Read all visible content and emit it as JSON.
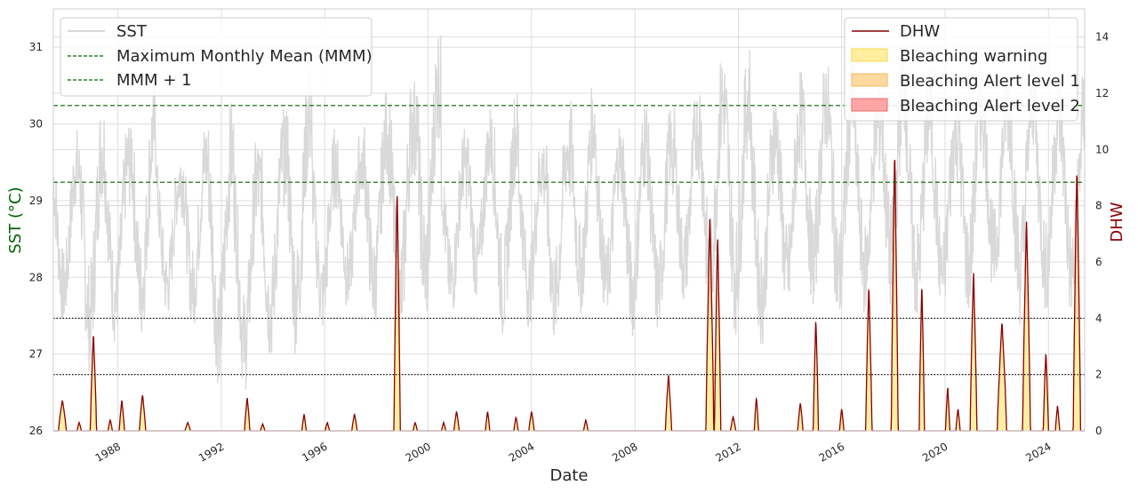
{
  "chart_data": {
    "type": "line",
    "xlabel": "Date",
    "ylabel_left": "SST (°C)",
    "ylabel_right": "DHW",
    "x_range": [
      1985.5,
      2025.4
    ],
    "ylim_left": [
      26,
      31.5
    ],
    "ylim_right": [
      0,
      15
    ],
    "xticks": [
      "1988",
      "1992",
      "1996",
      "2000",
      "2004",
      "2008",
      "2012",
      "2016",
      "2020",
      "2024"
    ],
    "yticks_left": [
      "26",
      "27",
      "28",
      "29",
      "30",
      "31"
    ],
    "yticks_right": [
      "0",
      "2",
      "4",
      "6",
      "8",
      "10",
      "12",
      "14"
    ],
    "grid": true,
    "reference_lines": [
      {
        "name": "Maximum Monthly Mean (MMM)",
        "axis": "left",
        "value": 29.24,
        "style": "dashed",
        "color": "#006400"
      },
      {
        "name": "MMM + 1",
        "axis": "left",
        "value": 30.24,
        "style": "dashed",
        "color": "#006400"
      },
      {
        "axis": "right",
        "value": 4,
        "style": "dotted",
        "color": "#000000"
      },
      {
        "axis": "right",
        "value": 2,
        "style": "dotted",
        "color": "#000000"
      }
    ],
    "sst_series": {
      "name": "SST",
      "color": "#d9d9d9",
      "seasonal_min": [
        27.5,
        27.0,
        27.3,
        27.4,
        27.6,
        27.5,
        26.8,
        26.7,
        27.1,
        27.2,
        27.4,
        27.7,
        27.5,
        27.2,
        27.6,
        27.6,
        27.8,
        27.4,
        27.5,
        27.3,
        27.7,
        27.6,
        27.4,
        27.4,
        27.8,
        27.6,
        27.5,
        27.3,
        27.6,
        27.8,
        27.5,
        27.7,
        27.8,
        27.6,
        27.6,
        27.7,
        27.9,
        27.6,
        27.7,
        27.6,
        27.8,
        27.9,
        27.7,
        27.7,
        27.6,
        27.8,
        27.6,
        27.7,
        27.8,
        27.6
      ],
      "seasonal_max": [
        29.8,
        30.2,
        29.9,
        30.4,
        29.6,
        29.9,
        30.1,
        29.7,
        30.0,
        30.6,
        29.8,
        29.8,
        30.3,
        30.5,
        31.1,
        29.8,
        30.1,
        30.3,
        29.8,
        30.1,
        30.4,
        29.9,
        30.2,
        30.1,
        30.3,
        30.8,
        30.9,
        30.3,
        30.5,
        30.7,
        30.8,
        30.4,
        31.0,
        30.6,
        30.3,
        30.7,
        30.6,
        30.9,
        30.5,
        30.6,
        30.8,
        30.7,
        30.9,
        30.6,
        30.8,
        30.6,
        30.9,
        30.7,
        31.0,
        30.8
      ]
    },
    "dhw_series": {
      "name": "DHW",
      "color": "#8b0000",
      "events": [
        {
          "t": 1985.85,
          "peak": 1.1,
          "width": 0.15
        },
        {
          "t": 1986.5,
          "peak": 0.3,
          "width": 0.08
        },
        {
          "t": 1987.05,
          "peak": 3.5,
          "width": 0.12
        },
        {
          "t": 1987.7,
          "peak": 0.4,
          "width": 0.08
        },
        {
          "t": 1988.15,
          "peak": 1.1,
          "width": 0.1
        },
        {
          "t": 1988.95,
          "peak": 1.3,
          "width": 0.12
        },
        {
          "t": 1990.7,
          "peak": 0.3,
          "width": 0.1
        },
        {
          "t": 1993.0,
          "peak": 1.2,
          "width": 0.1
        },
        {
          "t": 1993.6,
          "peak": 0.25,
          "width": 0.08
        },
        {
          "t": 1995.2,
          "peak": 0.6,
          "width": 0.08
        },
        {
          "t": 1996.1,
          "peak": 0.3,
          "width": 0.08
        },
        {
          "t": 1997.15,
          "peak": 0.6,
          "width": 0.1
        },
        {
          "t": 1998.8,
          "peak": 8.6,
          "width": 0.12
        },
        {
          "t": 1999.5,
          "peak": 0.3,
          "width": 0.08
        },
        {
          "t": 2000.6,
          "peak": 0.3,
          "width": 0.08
        },
        {
          "t": 2001.1,
          "peak": 0.7,
          "width": 0.1
        },
        {
          "t": 2002.3,
          "peak": 0.7,
          "width": 0.08
        },
        {
          "t": 2003.4,
          "peak": 0.5,
          "width": 0.08
        },
        {
          "t": 2004.0,
          "peak": 0.7,
          "width": 0.1
        },
        {
          "t": 2006.1,
          "peak": 0.4,
          "width": 0.08
        },
        {
          "t": 2009.3,
          "peak": 2.0,
          "width": 0.12
        },
        {
          "t": 2010.9,
          "peak": 7.6,
          "width": 0.15
        },
        {
          "t": 2011.2,
          "peak": 7.0,
          "width": 0.12
        },
        {
          "t": 2011.8,
          "peak": 0.5,
          "width": 0.1
        },
        {
          "t": 2012.7,
          "peak": 1.2,
          "width": 0.08
        },
        {
          "t": 2014.4,
          "peak": 1.0,
          "width": 0.1
        },
        {
          "t": 2015.0,
          "peak": 4.0,
          "width": 0.1
        },
        {
          "t": 2016.0,
          "peak": 0.8,
          "width": 0.08
        },
        {
          "t": 2017.05,
          "peak": 5.2,
          "width": 0.12
        },
        {
          "t": 2018.05,
          "peak": 10.0,
          "width": 0.13
        },
        {
          "t": 2019.1,
          "peak": 5.3,
          "width": 0.1
        },
        {
          "t": 2020.1,
          "peak": 1.6,
          "width": 0.08
        },
        {
          "t": 2020.5,
          "peak": 0.8,
          "width": 0.08
        },
        {
          "t": 2021.1,
          "peak": 5.7,
          "width": 0.13
        },
        {
          "t": 2022.2,
          "peak": 3.9,
          "width": 0.18
        },
        {
          "t": 2023.15,
          "peak": 7.5,
          "width": 0.15
        },
        {
          "t": 2023.9,
          "peak": 2.8,
          "width": 0.1
        },
        {
          "t": 2024.35,
          "peak": 0.9,
          "width": 0.08
        },
        {
          "t": 2025.1,
          "peak": 9.4,
          "width": 0.14
        }
      ]
    },
    "fills": [
      {
        "name": "Bleaching warning",
        "color": "#ffe87c"
      },
      {
        "name": "Bleaching Alert level 1",
        "color": "#ffcc80"
      },
      {
        "name": "Bleaching Alert level 2",
        "color": "#ff8a8a"
      }
    ],
    "legend_left": {
      "position": "upper-left",
      "entries": [
        "SST",
        "Maximum Monthly Mean (MMM)",
        "MMM + 1"
      ]
    },
    "legend_right": {
      "position": "upper-right",
      "entries": [
        "DHW",
        "Bleaching warning",
        "Bleaching Alert level 1",
        "Bleaching Alert level 2"
      ]
    }
  }
}
